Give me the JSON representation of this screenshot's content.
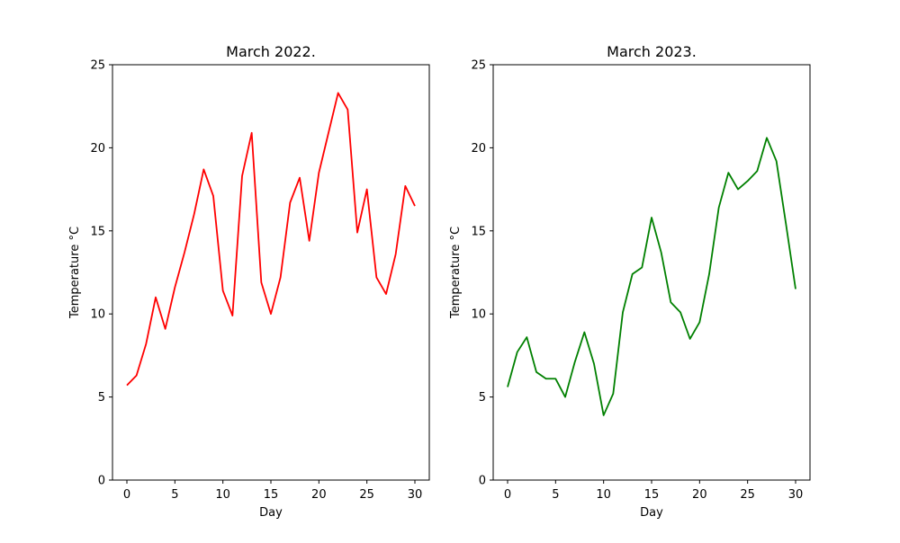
{
  "chart_data": [
    {
      "type": "line",
      "title": "March 2022.",
      "xlabel": "Day",
      "ylabel": "Temperature °C",
      "xlim": [
        -1.5,
        31.5
      ],
      "ylim": [
        0,
        25
      ],
      "xticks": [
        0,
        5,
        10,
        15,
        20,
        25,
        30
      ],
      "yticks": [
        0,
        5,
        10,
        15,
        20,
        25
      ],
      "grid": false,
      "series": [
        {
          "color": "#ff0000",
          "x": [
            0,
            1,
            2,
            3,
            4,
            5,
            6,
            7,
            8,
            9,
            10,
            11,
            12,
            13,
            14,
            15,
            16,
            17,
            18,
            19,
            20,
            21,
            22,
            23,
            24,
            25,
            26,
            27,
            28,
            29,
            30
          ],
          "y": [
            5.7,
            6.3,
            8.2,
            11.0,
            9.1,
            11.6,
            13.7,
            16.0,
            18.7,
            17.1,
            11.4,
            9.9,
            18.3,
            20.9,
            11.9,
            10.0,
            12.2,
            16.7,
            18.2,
            14.4,
            18.5,
            20.9,
            23.3,
            22.3,
            14.9,
            17.5,
            12.2,
            11.2,
            13.6,
            17.7,
            16.5
          ]
        }
      ]
    },
    {
      "type": "line",
      "title": "March 2023.",
      "xlabel": "Day",
      "ylabel": "Temperature °C",
      "xlim": [
        -1.5,
        31.5
      ],
      "ylim": [
        0,
        25
      ],
      "xticks": [
        0,
        5,
        10,
        15,
        20,
        25,
        30
      ],
      "yticks": [
        0,
        5,
        10,
        15,
        20,
        25
      ],
      "grid": false,
      "series": [
        {
          "color": "#008000",
          "x": [
            0,
            1,
            2,
            3,
            4,
            5,
            6,
            7,
            8,
            9,
            10,
            11,
            12,
            13,
            14,
            15,
            16,
            17,
            18,
            19,
            20,
            21,
            22,
            23,
            24,
            25,
            26,
            27,
            28,
            29,
            30
          ],
          "y": [
            5.6,
            7.7,
            8.6,
            6.5,
            6.1,
            6.1,
            5.0,
            7.1,
            8.9,
            7.0,
            3.9,
            5.2,
            10.1,
            12.4,
            12.8,
            15.8,
            13.7,
            10.7,
            10.1,
            8.5,
            9.5,
            12.4,
            16.4,
            18.5,
            17.5,
            18.0,
            18.6,
            20.6,
            19.2,
            15.4,
            11.5
          ]
        }
      ]
    }
  ]
}
